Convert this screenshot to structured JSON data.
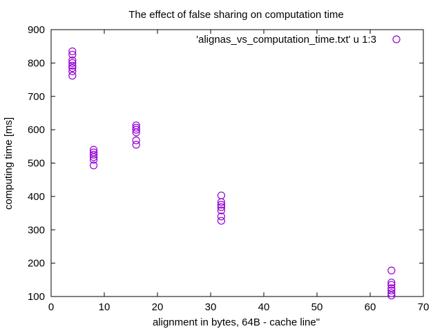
{
  "chart_data": {
    "type": "scatter",
    "title": "The effect of false sharing on computation time",
    "xlabel": "alignment in bytes, 64B - cache line\"",
    "ylabel": "computing time [ms]",
    "xlim": [
      0,
      70
    ],
    "ylim": [
      100,
      900
    ],
    "xticks": [
      "0",
      "10",
      "20",
      "30",
      "40",
      "50",
      "60",
      "70"
    ],
    "yticks": [
      "100",
      "200",
      "300",
      "400",
      "500",
      "600",
      "700",
      "800",
      "900"
    ],
    "grid": false,
    "legend_position": "top-right",
    "marker": "open-circle",
    "color": "#9400d3",
    "series": [
      {
        "name": "'alignas_vs_computation_time.txt' u 1:3",
        "points": [
          [
            4,
            762
          ],
          [
            4,
            775
          ],
          [
            4,
            785
          ],
          [
            4,
            792
          ],
          [
            4,
            800
          ],
          [
            4,
            808
          ],
          [
            4,
            825
          ],
          [
            4,
            835
          ],
          [
            8,
            493
          ],
          [
            8,
            510
          ],
          [
            8,
            518
          ],
          [
            8,
            525
          ],
          [
            8,
            532
          ],
          [
            8,
            540
          ],
          [
            16,
            555
          ],
          [
            16,
            568
          ],
          [
            16,
            592
          ],
          [
            16,
            600
          ],
          [
            16,
            606
          ],
          [
            16,
            613
          ],
          [
            32,
            327
          ],
          [
            32,
            340
          ],
          [
            32,
            358
          ],
          [
            32,
            368
          ],
          [
            32,
            375
          ],
          [
            32,
            383
          ],
          [
            32,
            403
          ],
          [
            64,
            103
          ],
          [
            64,
            110
          ],
          [
            64,
            118
          ],
          [
            64,
            125
          ],
          [
            64,
            135
          ],
          [
            64,
            142
          ],
          [
            64,
            178
          ]
        ]
      }
    ]
  }
}
